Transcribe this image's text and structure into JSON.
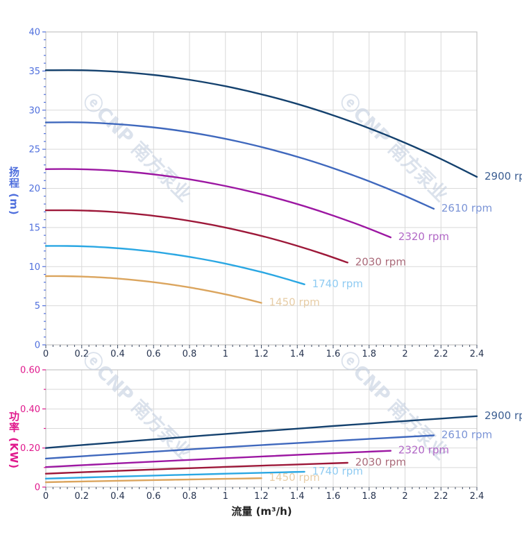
{
  "figure": {
    "background": "#ffffff",
    "x_axis_title": "流量 (m³/h)",
    "watermark": {
      "text": "ⓔCNP 南方泵业",
      "color": "#c4cfe0",
      "opacity": 0.6
    }
  },
  "chart_data": [
    {
      "type": "line",
      "id": "head-vs-flow",
      "ylabel": "扬程 (m)",
      "xlabel": "流量 (m³/h)",
      "xlim": [
        0,
        2.4
      ],
      "ylim": [
        0,
        40
      ],
      "grid": "on",
      "legend_position": "labels-at-line-ends",
      "axis_color": "#4f6fdd",
      "x_tick_values": [
        0,
        0.2,
        0.4,
        0.6,
        0.8,
        1,
        1.2,
        1.4,
        1.6,
        1.8,
        2,
        2.2,
        2.4
      ],
      "x_tick_labels": [
        "0",
        "0.2",
        "0.4",
        "0.6",
        "0.8",
        "1",
        "1.2",
        "1.4",
        "1.6",
        "1.8",
        "2",
        "2.2",
        "2.4"
      ],
      "y_tick_values": [
        0,
        5,
        10,
        15,
        20,
        25,
        30,
        35,
        40
      ],
      "y_tick_labels": [
        "0",
        "5",
        "10",
        "15",
        "20",
        "25",
        "30",
        "35",
        "40"
      ],
      "y_grid_step": 5,
      "y_minor_step": 1,
      "x_grid_step": 0.2,
      "x_minor_step": 0.04,
      "series": [
        {
          "name": "2900 rpm",
          "rpm": 2900,
          "color": "#14416e",
          "label_color": "#3c5e92",
          "x": [
            0,
            0.2,
            0.4,
            0.6,
            0.8,
            1.0,
            1.2,
            1.4,
            1.6,
            1.8,
            2.0,
            2.2,
            2.4
          ],
          "y": [
            35.1,
            35.1,
            34.91,
            34.5,
            33.88,
            33.06,
            32.03,
            30.79,
            29.34,
            27.68,
            25.82,
            23.75,
            21.47
          ]
        },
        {
          "name": "2610 rpm",
          "rpm": 2610,
          "color": "#3f68bd",
          "label_color": "#7b94d6",
          "x": [
            0,
            0.18,
            0.36,
            0.54,
            0.72,
            0.9,
            1.08,
            1.26,
            1.44,
            1.62,
            1.8,
            1.98,
            2.16
          ],
          "y": [
            28.43,
            28.44,
            28.27,
            27.94,
            27.45,
            26.78,
            25.94,
            24.94,
            23.77,
            22.42,
            20.91,
            19.24,
            17.39
          ]
        },
        {
          "name": "2320 rpm",
          "rpm": 2320,
          "color": "#9c17a2",
          "label_color": "#b168c6",
          "x": [
            0,
            0.16,
            0.32,
            0.48,
            0.64,
            0.8,
            0.96,
            1.12,
            1.28,
            1.44,
            1.6,
            1.76,
            1.92
          ],
          "y": [
            22.46,
            22.47,
            22.34,
            22.08,
            21.68,
            21.16,
            20.49,
            19.7,
            18.78,
            17.72,
            16.52,
            15.2,
            13.74
          ]
        },
        {
          "name": "2030 rpm",
          "rpm": 2030,
          "color": "#9d1839",
          "label_color": "#aa6a79",
          "x": [
            0,
            0.14,
            0.28,
            0.42,
            0.56,
            0.7,
            0.84,
            0.98,
            1.12,
            1.26,
            1.4,
            1.54,
            1.68
          ],
          "y": [
            17.2,
            17.2,
            17.11,
            16.91,
            16.6,
            16.2,
            15.69,
            15.09,
            14.38,
            13.57,
            12.65,
            11.64,
            10.52
          ]
        },
        {
          "name": "1740 rpm",
          "rpm": 1740,
          "color": "#2aa7e3",
          "label_color": "#8fcbf2",
          "x": [
            0,
            0.12,
            0.24,
            0.36,
            0.48,
            0.6,
            0.72,
            0.84,
            0.96,
            1.08,
            1.2,
            1.32,
            1.44
          ],
          "y": [
            12.64,
            12.64,
            12.57,
            12.42,
            12.2,
            11.91,
            11.53,
            11.09,
            10.57,
            9.97,
            9.3,
            8.55,
            7.73
          ]
        },
        {
          "name": "1450 rpm",
          "rpm": 1450,
          "color": "#dba55e",
          "label_color": "#e7cda6",
          "x": [
            0,
            0.1,
            0.2,
            0.3,
            0.4,
            0.5,
            0.6,
            0.7,
            0.8,
            0.9,
            1.0,
            1.1,
            1.2
          ],
          "y": [
            8.78,
            8.78,
            8.73,
            8.63,
            8.48,
            8.27,
            8.01,
            7.7,
            7.34,
            6.93,
            6.46,
            5.94,
            5.37
          ]
        }
      ]
    },
    {
      "type": "line",
      "id": "power-vs-flow",
      "ylabel": "功率 (KW)",
      "xlabel": "流量 (m³/h)",
      "xlim": [
        0,
        2.4
      ],
      "ylim": [
        0,
        0.6
      ],
      "grid": "on",
      "legend_position": "labels-at-line-ends",
      "axis_color": "#e0188c",
      "x_tick_values": [
        0,
        0.2,
        0.4,
        0.6,
        0.8,
        1,
        1.2,
        1.4,
        1.6,
        1.8,
        2,
        2.2,
        2.4
      ],
      "x_tick_labels": [
        "0",
        "0.2",
        "0.4",
        "0.6",
        "0.8",
        "1",
        "1.2",
        "1.4",
        "1.6",
        "1.8",
        "2",
        "2.2",
        "2.4"
      ],
      "y_tick_values": [
        0,
        0.2,
        0.4,
        0.6
      ],
      "y_tick_labels": [
        "0",
        "0.20",
        "0.40",
        "0.60"
      ],
      "y_grid_step": 0.1,
      "y_minor_step": 0.1,
      "x_grid_step": 0.2,
      "x_minor_step": 0.04,
      "series": [
        {
          "name": "2900 rpm",
          "rpm": 2900,
          "color": "#14416e",
          "label_color": "#3c5e92",
          "x": [
            0,
            0.2,
            0.4,
            0.6,
            0.8,
            1.0,
            1.2,
            1.4,
            1.6,
            1.8,
            2.0,
            2.2,
            2.4
          ],
          "y": [
            0.2,
            0.215,
            0.2295,
            0.2439,
            0.2581,
            0.272,
            0.2857,
            0.2991,
            0.3123,
            0.3253,
            0.338,
            0.3505,
            0.3627
          ]
        },
        {
          "name": "2610 rpm",
          "rpm": 2610,
          "color": "#3f68bd",
          "label_color": "#7b94d6",
          "x": [
            0,
            0.18,
            0.36,
            0.54,
            0.72,
            0.9,
            1.08,
            1.26,
            1.44,
            1.62,
            1.8,
            1.98,
            2.16
          ],
          "y": [
            0.1458,
            0.1566,
            0.1673,
            0.1778,
            0.1882,
            0.1983,
            0.2083,
            0.2181,
            0.2277,
            0.2371,
            0.2464,
            0.2555,
            0.2644
          ]
        },
        {
          "name": "2320 rpm",
          "rpm": 2320,
          "color": "#9c17a2",
          "label_color": "#b168c6",
          "x": [
            0,
            0.16,
            0.32,
            0.48,
            0.64,
            0.8,
            0.96,
            1.12,
            1.28,
            1.44,
            1.6,
            1.76,
            1.92
          ],
          "y": [
            0.1024,
            0.11,
            0.1175,
            0.1249,
            0.1321,
            0.1393,
            0.1463,
            0.1531,
            0.1599,
            0.1665,
            0.1731,
            0.1795,
            0.1857
          ]
        },
        {
          "name": "2030 rpm",
          "rpm": 2030,
          "color": "#9d1839",
          "label_color": "#aa6a79",
          "x": [
            0,
            0.14,
            0.28,
            0.42,
            0.56,
            0.7,
            0.84,
            0.98,
            1.12,
            1.26,
            1.4,
            1.54,
            1.68
          ],
          "y": [
            0.0686,
            0.0737,
            0.0787,
            0.0837,
            0.0885,
            0.0933,
            0.098,
            0.1026,
            0.1071,
            0.1115,
            0.1159,
            0.1201,
            0.1243
          ]
        },
        {
          "name": "1740 rpm",
          "rpm": 1740,
          "color": "#2aa7e3",
          "label_color": "#8fcbf2",
          "x": [
            0,
            0.12,
            0.24,
            0.36,
            0.48,
            0.6,
            0.72,
            0.84,
            0.96,
            1.08,
            1.2,
            1.32,
            1.44
          ],
          "y": [
            0.0432,
            0.0464,
            0.0496,
            0.0527,
            0.0557,
            0.0588,
            0.0617,
            0.0646,
            0.0675,
            0.0703,
            0.073,
            0.0757,
            0.0784
          ]
        },
        {
          "name": "1450 rpm",
          "rpm": 1450,
          "color": "#dba55e",
          "label_color": "#e7cda6",
          "x": [
            0,
            0.1,
            0.2,
            0.3,
            0.4,
            0.5,
            0.6,
            0.7,
            0.8,
            0.9,
            1.0,
            1.1,
            1.2
          ],
          "y": [
            0.025,
            0.0269,
            0.0287,
            0.0305,
            0.0323,
            0.034,
            0.0357,
            0.0374,
            0.039,
            0.0407,
            0.0423,
            0.0438,
            0.0453
          ]
        }
      ]
    }
  ]
}
